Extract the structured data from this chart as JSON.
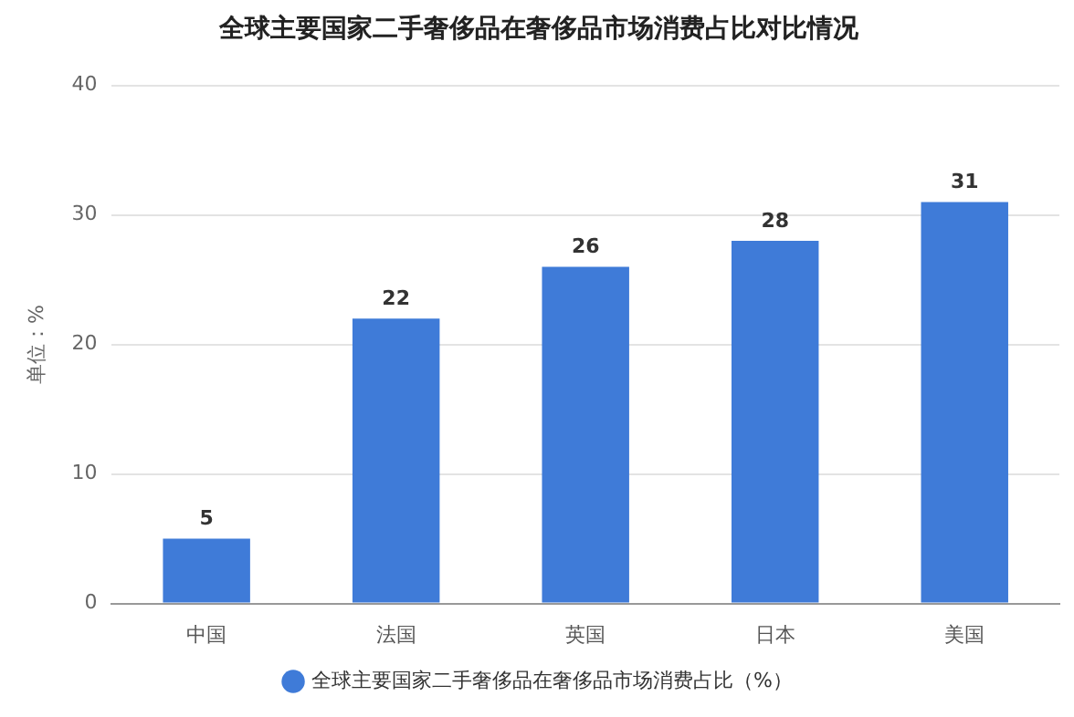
{
  "chart_data": {
    "type": "bar",
    "title": "全球主要国家二手奢侈品在奢侈品市场消费占比对比情况",
    "ylabel": "单位：%",
    "categories": [
      "中国",
      "法国",
      "英国",
      "日本",
      "美国"
    ],
    "series": [
      {
        "name": "全球主要国家二手奢侈品在奢侈品市场消费占比（%）",
        "color": "#3f7bd8",
        "values": [
          5,
          22,
          26,
          28,
          31
        ]
      }
    ],
    "ylim": [
      0,
      40
    ],
    "yticks": [
      0,
      10,
      20,
      30,
      40
    ],
    "grid": "y",
    "legend": "bottom",
    "marker": "circle",
    "data_labels": true
  }
}
